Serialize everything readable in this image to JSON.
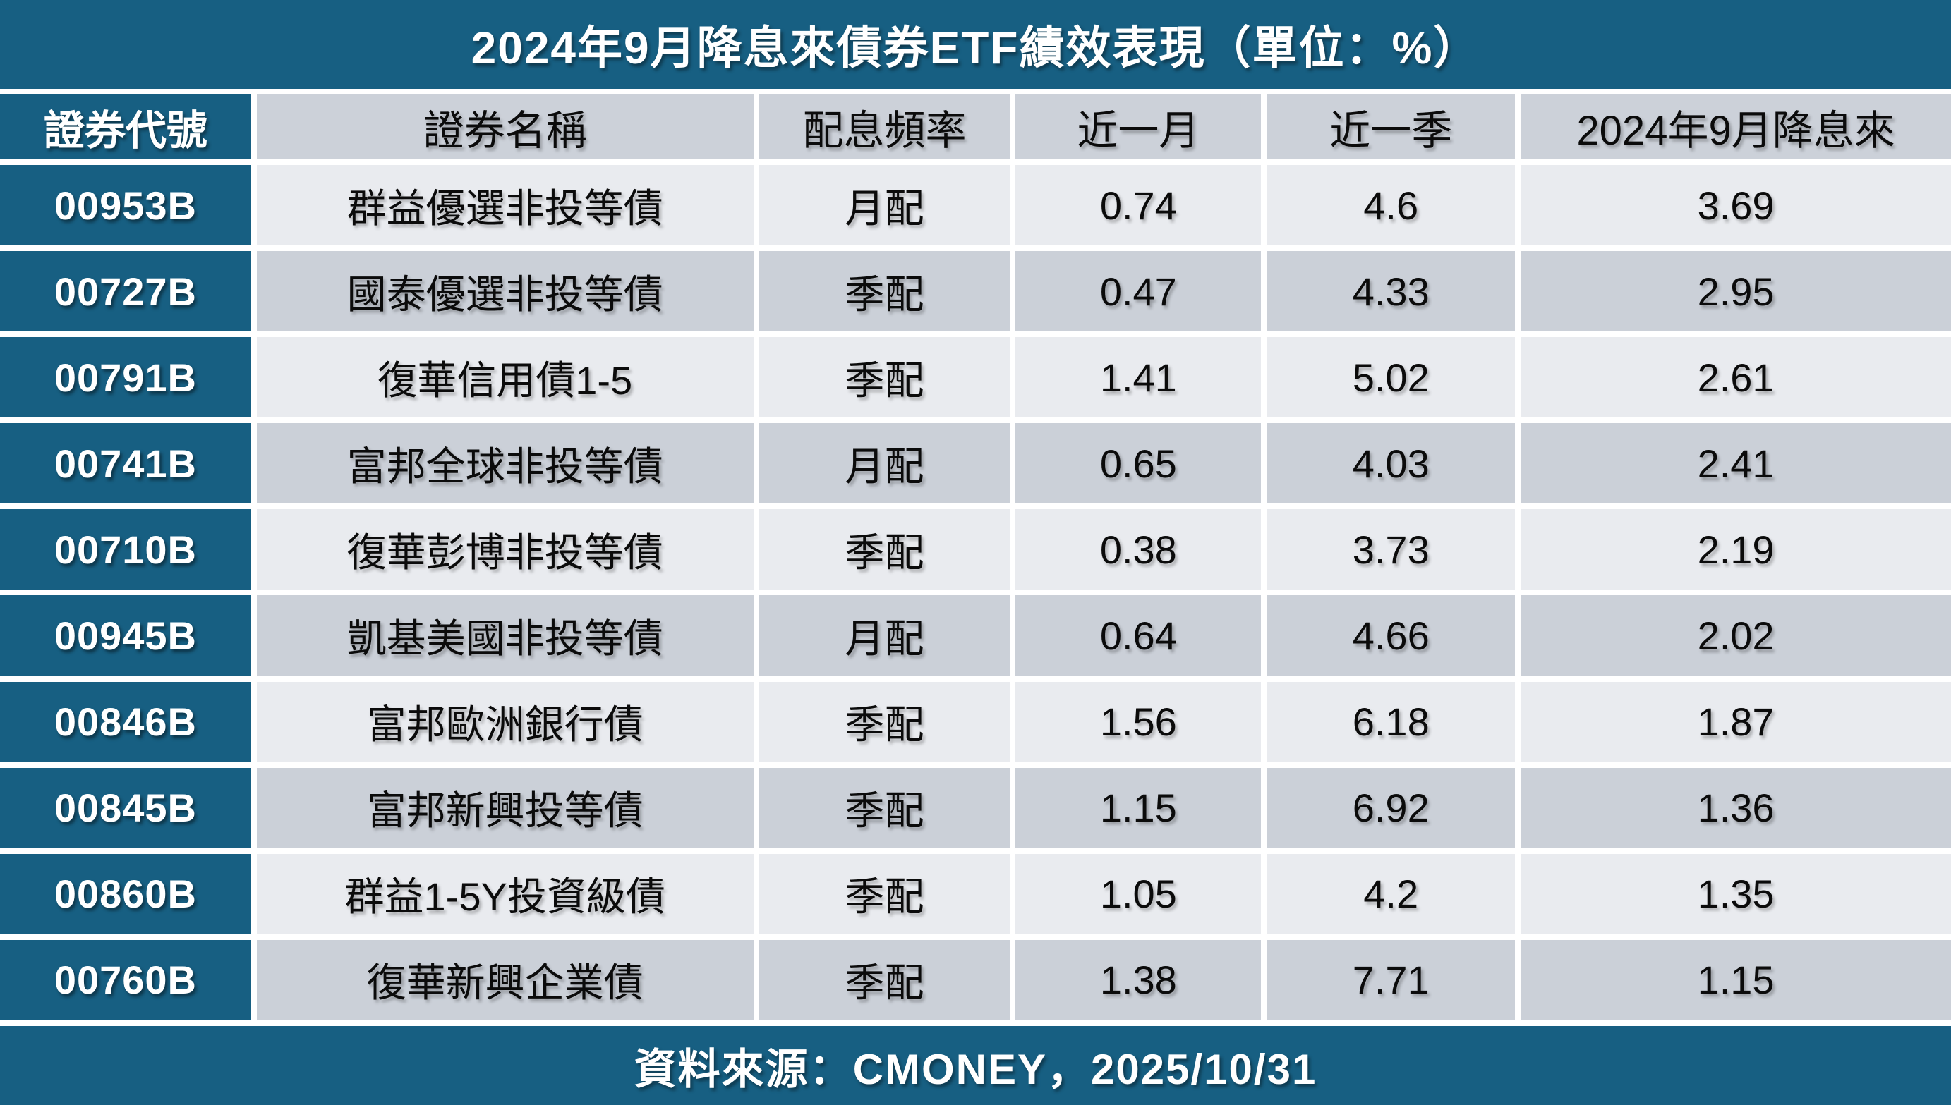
{
  "title": "2024年9月降息來債券ETF績效表現（單位：%）",
  "source": "資料來源：CMONEY，2025/10/31",
  "colors": {
    "teal": "#175F82",
    "header_gray": "#CCD1D9",
    "row_light": "#E9EBEF",
    "row_dark": "#CBD0D8",
    "gridline": "#FFFFFF",
    "text_dark": "#0B0B0B",
    "text_light": "#FFFFFF"
  },
  "chart_data": {
    "type": "table",
    "title": "2024年9月降息來債券ETF績效表現（單位：%）",
    "unit": "%",
    "columns": [
      "證券代號",
      "證券名稱",
      "配息頻率",
      "近一月",
      "近一季",
      "2024年9月降息來"
    ],
    "rows": [
      [
        "00953B",
        "群益優選非投等債",
        "月配",
        "0.74",
        "4.6",
        "3.69"
      ],
      [
        "00727B",
        "國泰優選非投等債",
        "季配",
        "0.47",
        "4.33",
        "2.95"
      ],
      [
        "00791B",
        "復華信用債1-5",
        "季配",
        "1.41",
        "5.02",
        "2.61"
      ],
      [
        "00741B",
        "富邦全球非投等債",
        "月配",
        "0.65",
        "4.03",
        "2.41"
      ],
      [
        "00710B",
        "復華彭博非投等債",
        "季配",
        "0.38",
        "3.73",
        "2.19"
      ],
      [
        "00945B",
        "凱基美國非投等債",
        "月配",
        "0.64",
        "4.66",
        "2.02"
      ],
      [
        "00846B",
        "富邦歐洲銀行債",
        "季配",
        "1.56",
        "6.18",
        "1.87"
      ],
      [
        "00845B",
        "富邦新興投等債",
        "季配",
        "1.15",
        "6.92",
        "1.36"
      ],
      [
        "00860B",
        "群益1-5Y投資級債",
        "季配",
        "1.05",
        "4.2",
        "1.35"
      ],
      [
        "00760B",
        "復華新興企業債",
        "季配",
        "1.38",
        "7.71",
        "1.15"
      ]
    ],
    "source": "資料來源：CMONEY，2025/10/31",
    "layout": {
      "header_row": true,
      "first_column_highlight": true,
      "banding": "alternating"
    }
  }
}
